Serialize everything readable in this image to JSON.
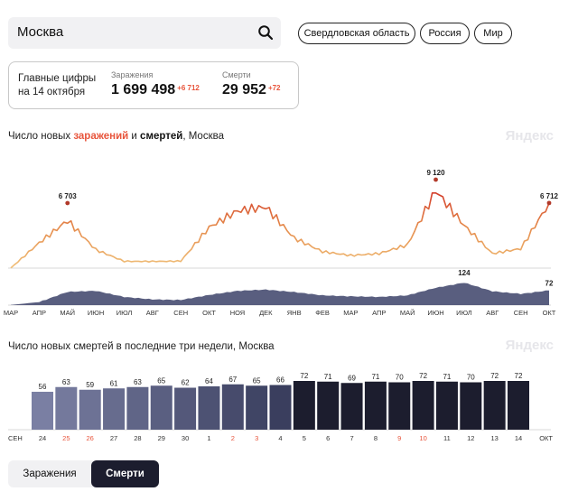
{
  "search": {
    "value": "Москва"
  },
  "regions": [
    "Свердловская область",
    "Россия",
    "Мир"
  ],
  "summary": {
    "title_line1": "Главные цифры",
    "title_line2": "на 14 октября",
    "infections_label": "Заражения",
    "infections_value": "1 699 498",
    "infections_delta": "+6 712",
    "deaths_label": "Смерти",
    "deaths_value": "29 952",
    "deaths_delta": "+72"
  },
  "main_chart": {
    "title_prefix": "Число новых ",
    "title_hl": "заражений",
    "title_mid": " и ",
    "title_bold": "смертей",
    "title_suffix": ", Москва",
    "brand": "Яндекс"
  },
  "bar_chart": {
    "title": "Число новых смертей в последние три недели, Москва",
    "brand": "Яндекс"
  },
  "tabs": {
    "infections": "Заражения",
    "deaths": "Смерти"
  },
  "colors": {
    "accent": "#e8553c",
    "infections_low": "#f0c079",
    "infections_high": "#d33d2a",
    "deaths_area": "#4b5074",
    "bar_dark": "#1c1d2e",
    "bar_light": "#7a7fa3"
  },
  "chart_data": [
    {
      "type": "line",
      "title": "Число новых заражений и смертей, Москва",
      "x_months": [
        "МАР",
        "АПР",
        "МАЙ",
        "ИЮН",
        "ИЮЛ",
        "АВГ",
        "СЕН",
        "ОКТ",
        "НОЯ",
        "ДЕК",
        "ЯНВ",
        "ФЕВ",
        "МАР",
        "АПР",
        "МАЙ",
        "ИЮН",
        "ИЮЛ",
        "АВГ",
        "СЕН",
        "ОКТ"
      ],
      "series": [
        {
          "name": "Заражения",
          "x": [
            "2020-03",
            "2020-04",
            "2020-05",
            "2020-06",
            "2020-07",
            "2020-08",
            "2020-09",
            "2020-10",
            "2020-11",
            "2020-12",
            "2021-01",
            "2021-02",
            "2021-03",
            "2021-04",
            "2021-05",
            "2021-06",
            "2021-07",
            "2021-08",
            "2021-09",
            "2021-10"
          ],
          "values": [
            5,
            2600,
            4900,
            1900,
            700,
            690,
            720,
            4200,
            5900,
            6300,
            3100,
            1700,
            1300,
            1500,
            2400,
            8000,
            4400,
            1500,
            2000,
            6712
          ]
        },
        {
          "name": "Смерти",
          "x": [
            "2020-03",
            "2020-04",
            "2020-05",
            "2020-06",
            "2020-07",
            "2020-08",
            "2020-09",
            "2020-10",
            "2020-11",
            "2020-12",
            "2021-01",
            "2021-02",
            "2021-03",
            "2021-04",
            "2021-05",
            "2021-06",
            "2021-07",
            "2021-08",
            "2021-09",
            "2021-10"
          ],
          "values": [
            1,
            15,
            65,
            70,
            40,
            28,
            25,
            50,
            70,
            76,
            64,
            48,
            43,
            40,
            48,
            85,
            110,
            68,
            55,
            72
          ]
        }
      ],
      "annotations": [
        {
          "label": "6 703",
          "x": "2020-05",
          "y": 6703
        },
        {
          "label": "9 120",
          "x": "2021-06",
          "y": 9120
        },
        {
          "label": "6 712",
          "x": "2021-10",
          "y": 6712
        },
        {
          "label": "124",
          "x": "2021-07",
          "y": 124
        },
        {
          "label": "72",
          "x": "2021-10",
          "y": 72
        }
      ]
    },
    {
      "type": "bar",
      "title": "Число новых смертей в последние три недели, Москва",
      "month_start": "СЕН",
      "month_end": "ОКТ",
      "categories": [
        "24",
        "25",
        "26",
        "27",
        "28",
        "29",
        "30",
        "1",
        "2",
        "3",
        "4",
        "5",
        "6",
        "7",
        "8",
        "9",
        "10",
        "11",
        "12",
        "13",
        "14"
      ],
      "weekend": [
        "25",
        "26",
        "2",
        "3",
        "9",
        "10"
      ],
      "values": [
        56,
        63,
        59,
        61,
        63,
        65,
        62,
        64,
        67,
        65,
        66,
        72,
        71,
        69,
        71,
        70,
        72,
        71,
        70,
        72,
        72
      ]
    }
  ]
}
